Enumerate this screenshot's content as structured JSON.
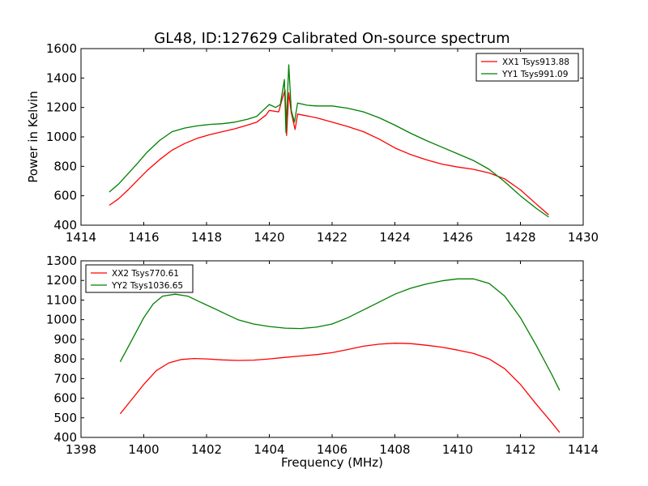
{
  "figure": {
    "title": "GL48, ID:127629 Calibrated On-source spectrum"
  },
  "chart_data": [
    {
      "type": "line",
      "title": "GL48, ID:127629 Calibrated On-source spectrum",
      "xlabel": "",
      "ylabel": "Power in Kelvin",
      "xlim": [
        1414,
        1430
      ],
      "ylim": [
        400,
        1600
      ],
      "xticks": [
        1414,
        1416,
        1418,
        1420,
        1422,
        1424,
        1426,
        1428,
        1430
      ],
      "yticks": [
        400,
        600,
        800,
        1000,
        1200,
        1400,
        1600
      ],
      "grid": false,
      "legend_position": "upper right",
      "series": [
        {
          "name": "XX1 Tsys913.88",
          "color": "#ff0000",
          "points": [
            [
              1414.9,
              535
            ],
            [
              1415.2,
              580
            ],
            [
              1415.5,
              640
            ],
            [
              1415.8,
              705
            ],
            [
              1416.1,
              770
            ],
            [
              1416.5,
              845
            ],
            [
              1416.9,
              910
            ],
            [
              1417.3,
              955
            ],
            [
              1417.7,
              990
            ],
            [
              1418.1,
              1015
            ],
            [
              1418.5,
              1035
            ],
            [
              1418.9,
              1055
            ],
            [
              1419.3,
              1080
            ],
            [
              1419.6,
              1100
            ],
            [
              1419.9,
              1150
            ],
            [
              1420.0,
              1180
            ],
            [
              1420.3,
              1170
            ],
            [
              1420.4,
              1250
            ],
            [
              1420.5,
              1320
            ],
            [
              1420.55,
              1010
            ],
            [
              1420.62,
              1300
            ],
            [
              1420.7,
              1165
            ],
            [
              1420.82,
              1050
            ],
            [
              1420.9,
              1155
            ],
            [
              1421.5,
              1130
            ],
            [
              1422.0,
              1100
            ],
            [
              1422.5,
              1070
            ],
            [
              1423.0,
              1035
            ],
            [
              1423.5,
              985
            ],
            [
              1424.0,
              925
            ],
            [
              1424.5,
              880
            ],
            [
              1425.0,
              845
            ],
            [
              1425.5,
              815
            ],
            [
              1426.0,
              795
            ],
            [
              1426.5,
              780
            ],
            [
              1427.0,
              755
            ],
            [
              1427.5,
              715
            ],
            [
              1428.0,
              640
            ],
            [
              1428.5,
              545
            ],
            [
              1428.9,
              470
            ]
          ]
        },
        {
          "name": "YY1 Tsys991.09",
          "color": "#008000",
          "points": [
            [
              1414.9,
              625
            ],
            [
              1415.2,
              680
            ],
            [
              1415.5,
              750
            ],
            [
              1415.8,
              820
            ],
            [
              1416.1,
              895
            ],
            [
              1416.5,
              975
            ],
            [
              1416.9,
              1035
            ],
            [
              1417.3,
              1060
            ],
            [
              1417.7,
              1075
            ],
            [
              1418.1,
              1085
            ],
            [
              1418.5,
              1090
            ],
            [
              1418.9,
              1100
            ],
            [
              1419.3,
              1120
            ],
            [
              1419.6,
              1140
            ],
            [
              1419.8,
              1180
            ],
            [
              1420.0,
              1220
            ],
            [
              1420.2,
              1200
            ],
            [
              1420.35,
              1220
            ],
            [
              1420.48,
              1390
            ],
            [
              1420.53,
              1030
            ],
            [
              1420.62,
              1490
            ],
            [
              1420.7,
              1180
            ],
            [
              1420.8,
              1100
            ],
            [
              1420.9,
              1230
            ],
            [
              1421.2,
              1215
            ],
            [
              1421.5,
              1210
            ],
            [
              1422.0,
              1210
            ],
            [
              1422.5,
              1195
            ],
            [
              1423.0,
              1170
            ],
            [
              1423.5,
              1130
            ],
            [
              1424.0,
              1080
            ],
            [
              1424.5,
              1025
            ],
            [
              1425.0,
              975
            ],
            [
              1425.5,
              930
            ],
            [
              1426.0,
              885
            ],
            [
              1426.5,
              840
            ],
            [
              1427.0,
              780
            ],
            [
              1427.5,
              695
            ],
            [
              1428.0,
              600
            ],
            [
              1428.5,
              515
            ],
            [
              1428.9,
              455
            ]
          ]
        }
      ]
    },
    {
      "type": "line",
      "title": "",
      "xlabel": "Frequency (MHz)",
      "ylabel": "",
      "xlim": [
        1398,
        1414
      ],
      "ylim": [
        400,
        1300
      ],
      "xticks": [
        1398,
        1400,
        1402,
        1404,
        1406,
        1408,
        1410,
        1412,
        1414
      ],
      "yticks": [
        400,
        500,
        600,
        700,
        800,
        900,
        1000,
        1100,
        1200,
        1300
      ],
      "grid": false,
      "legend_position": "upper left",
      "series": [
        {
          "name": "XX2 Tsys770.61",
          "color": "#ff0000",
          "points": [
            [
              1399.25,
              520
            ],
            [
              1399.6,
              590
            ],
            [
              1400.0,
              670
            ],
            [
              1400.4,
              740
            ],
            [
              1400.8,
              780
            ],
            [
              1401.2,
              797
            ],
            [
              1401.6,
              802
            ],
            [
              1402.0,
              800
            ],
            [
              1402.5,
              795
            ],
            [
              1403.0,
              792
            ],
            [
              1403.5,
              794
            ],
            [
              1404.0,
              800
            ],
            [
              1404.5,
              808
            ],
            [
              1405.0,
              815
            ],
            [
              1405.5,
              822
            ],
            [
              1406.0,
              832
            ],
            [
              1406.5,
              848
            ],
            [
              1407.0,
              865
            ],
            [
              1407.5,
              875
            ],
            [
              1408.0,
              880
            ],
            [
              1408.5,
              878
            ],
            [
              1409.0,
              870
            ],
            [
              1409.5,
              860
            ],
            [
              1410.0,
              845
            ],
            [
              1410.5,
              828
            ],
            [
              1411.0,
              800
            ],
            [
              1411.5,
              750
            ],
            [
              1412.0,
              670
            ],
            [
              1412.5,
              570
            ],
            [
              1413.0,
              475
            ],
            [
              1413.25,
              425
            ]
          ]
        },
        {
          "name": "YY2 Tsys1036.65",
          "color": "#008000",
          "points": [
            [
              1399.25,
              785
            ],
            [
              1399.6,
              890
            ],
            [
              1400.0,
              1010
            ],
            [
              1400.3,
              1080
            ],
            [
              1400.6,
              1120
            ],
            [
              1401.0,
              1130
            ],
            [
              1401.4,
              1120
            ],
            [
              1401.8,
              1090
            ],
            [
              1402.2,
              1060
            ],
            [
              1402.6,
              1030
            ],
            [
              1403.0,
              1000
            ],
            [
              1403.5,
              978
            ],
            [
              1404.0,
              965
            ],
            [
              1404.5,
              957
            ],
            [
              1405.0,
              955
            ],
            [
              1405.5,
              962
            ],
            [
              1406.0,
              978
            ],
            [
              1406.5,
              1010
            ],
            [
              1407.0,
              1050
            ],
            [
              1407.5,
              1090
            ],
            [
              1408.0,
              1130
            ],
            [
              1408.5,
              1160
            ],
            [
              1409.0,
              1182
            ],
            [
              1409.5,
              1198
            ],
            [
              1410.0,
              1208
            ],
            [
              1410.5,
              1208
            ],
            [
              1411.0,
              1185
            ],
            [
              1411.5,
              1120
            ],
            [
              1412.0,
              1010
            ],
            [
              1412.5,
              870
            ],
            [
              1413.0,
              720
            ],
            [
              1413.25,
              640
            ]
          ]
        }
      ]
    }
  ]
}
